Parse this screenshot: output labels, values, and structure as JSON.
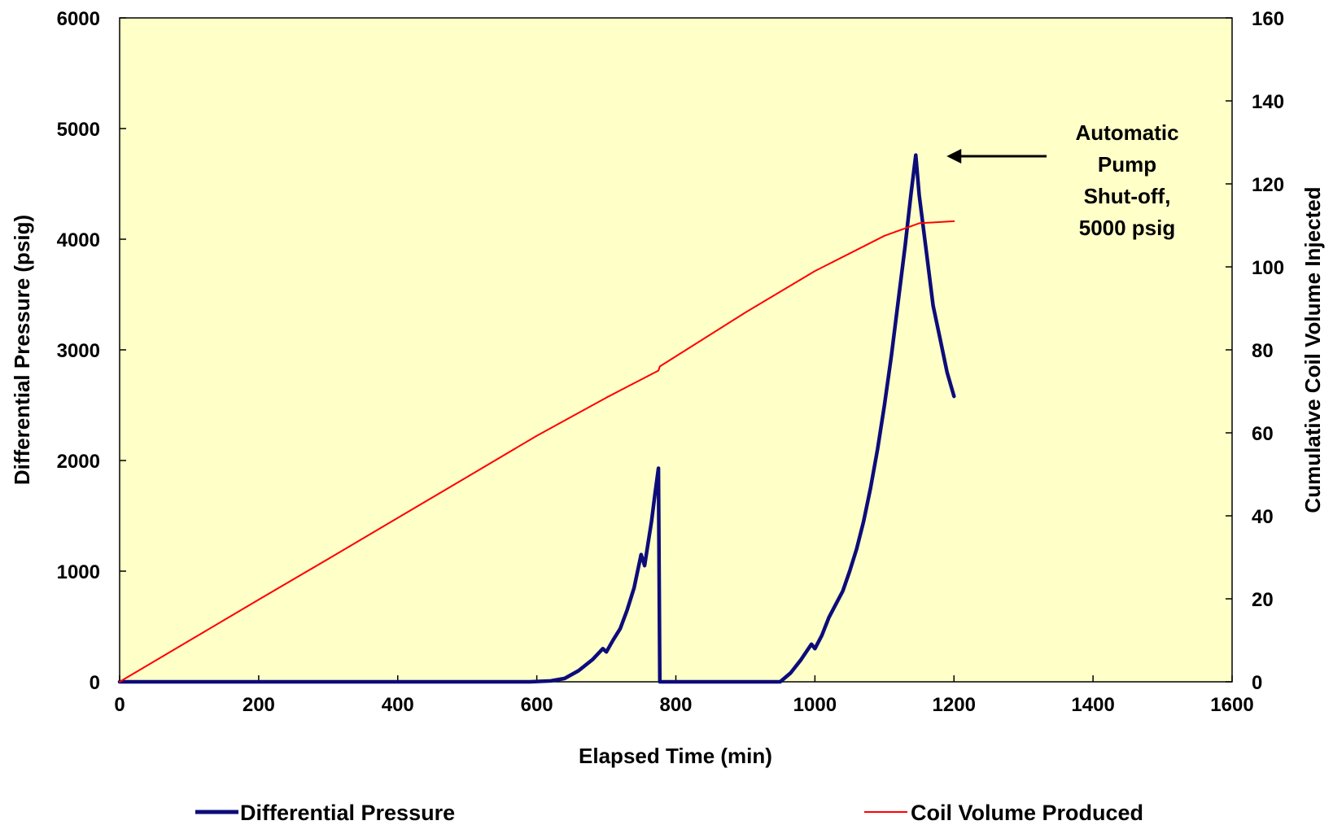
{
  "chart_data": {
    "type": "line",
    "xlabel": "Elapsed Time (min)",
    "ylabel": "Differential Pressure (psig)",
    "y2label": "Cumulative Coil Volume Injected",
    "xlim": [
      0,
      1600
    ],
    "ylim": [
      0,
      6000
    ],
    "y2lim": [
      0,
      160
    ],
    "x_ticks": [
      0,
      200,
      400,
      600,
      800,
      1000,
      1200,
      1400,
      1600
    ],
    "y_ticks": [
      0,
      1000,
      2000,
      3000,
      4000,
      5000,
      6000
    ],
    "y2_ticks": [
      0,
      20,
      40,
      60,
      80,
      100,
      120,
      140,
      160
    ],
    "grid": false,
    "plot_background": "#ffffc8",
    "legend_position": "bottom",
    "series": [
      {
        "name": "Differential Pressure",
        "axis": "left",
        "color": "#0c0c7a",
        "points": [
          [
            0,
            0
          ],
          [
            590,
            0
          ],
          [
            620,
            8
          ],
          [
            640,
            30
          ],
          [
            660,
            100
          ],
          [
            680,
            200
          ],
          [
            695,
            300
          ],
          [
            700,
            270
          ],
          [
            710,
            380
          ],
          [
            720,
            480
          ],
          [
            730,
            650
          ],
          [
            740,
            850
          ],
          [
            750,
            1150
          ],
          [
            755,
            1050
          ],
          [
            760,
            1250
          ],
          [
            765,
            1450
          ],
          [
            770,
            1700
          ],
          [
            775,
            1930
          ],
          [
            777,
            0
          ],
          [
            950,
            0
          ],
          [
            965,
            80
          ],
          [
            980,
            200
          ],
          [
            995,
            340
          ],
          [
            1000,
            300
          ],
          [
            1010,
            420
          ],
          [
            1020,
            580
          ],
          [
            1030,
            700
          ],
          [
            1040,
            820
          ],
          [
            1050,
            1000
          ],
          [
            1060,
            1200
          ],
          [
            1070,
            1450
          ],
          [
            1080,
            1750
          ],
          [
            1090,
            2100
          ],
          [
            1100,
            2500
          ],
          [
            1110,
            2950
          ],
          [
            1120,
            3450
          ],
          [
            1130,
            3950
          ],
          [
            1138,
            4400
          ],
          [
            1145,
            4760
          ],
          [
            1150,
            4400
          ],
          [
            1160,
            3900
          ],
          [
            1170,
            3400
          ],
          [
            1180,
            3100
          ],
          [
            1190,
            2800
          ],
          [
            1200,
            2580
          ]
        ]
      },
      {
        "name": "Coil Volume Produced",
        "axis": "right",
        "color": "#ff0000",
        "points": [
          [
            0,
            0
          ],
          [
            100,
            9.9
          ],
          [
            200,
            19.8
          ],
          [
            300,
            29.6
          ],
          [
            400,
            39.5
          ],
          [
            500,
            49.4
          ],
          [
            600,
            59.3
          ],
          [
            700,
            68.5
          ],
          [
            775,
            75
          ],
          [
            777,
            76
          ],
          [
            900,
            89
          ],
          [
            1000,
            99
          ],
          [
            1100,
            107.5
          ],
          [
            1150,
            110.5
          ],
          [
            1200,
            111
          ]
        ]
      }
    ],
    "annotations": [
      {
        "lines": [
          "Automatic",
          "Pump",
          "Shut-off,",
          "5000 psig"
        ],
        "arrow_to": [
          1145,
          4760
        ]
      }
    ]
  }
}
